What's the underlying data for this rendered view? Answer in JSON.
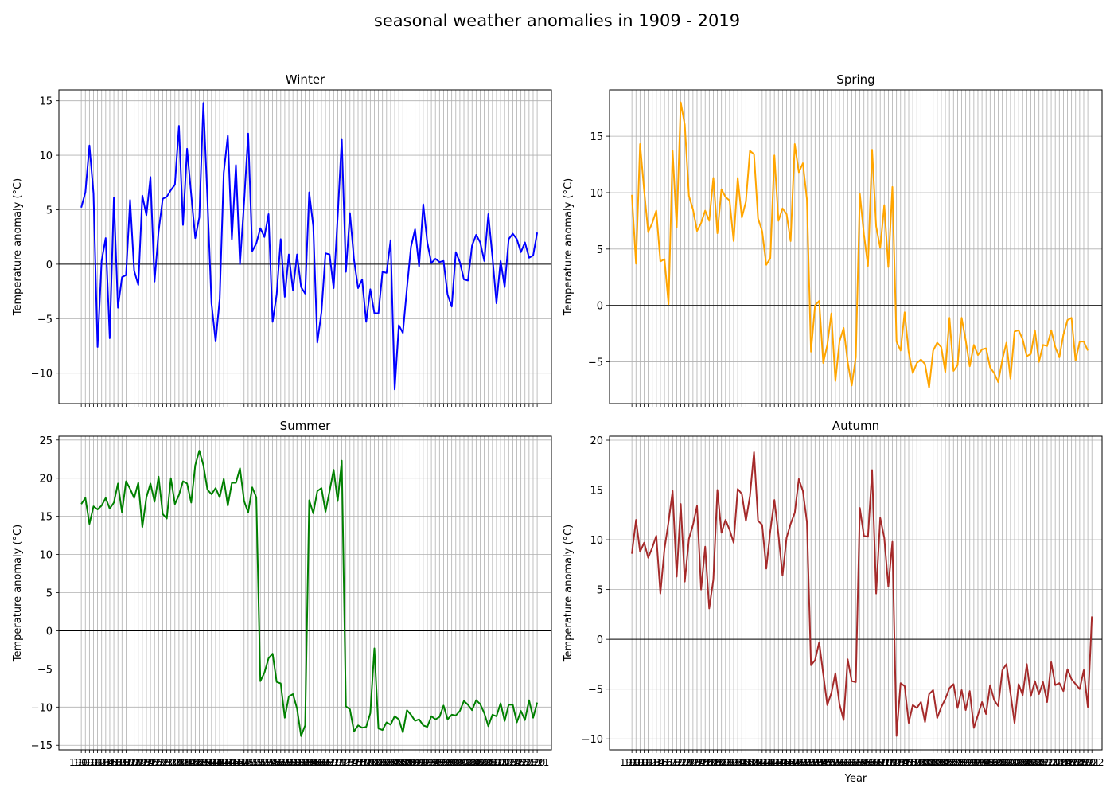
{
  "figure": {
    "title": "seasonal weather anomalies in 1909 - 2019"
  },
  "chart_data": [
    {
      "type": "line",
      "title": "Winter",
      "xlabel": "",
      "ylabel": "Temperature anomaly (°C)",
      "color": "#0000ff",
      "ylim": [
        -12.8,
        16.0
      ],
      "yticks": [
        -10,
        -5,
        0,
        5,
        10,
        15
      ],
      "x_start": 1909,
      "x_end": 2019,
      "grid": true,
      "zero_line": true,
      "values": [
        5.2,
        6.6,
        10.9,
        6.5,
        -7.6,
        0.3,
        2.4,
        -6.8,
        6.1,
        -4.0,
        -1.2,
        -1.0,
        5.9,
        -0.6,
        -1.9,
        6.3,
        4.5,
        8.0,
        -1.6,
        3.0,
        6.0,
        6.2,
        6.8,
        7.3,
        12.7,
        3.6,
        10.6,
        6.4,
        2.4,
        4.3,
        14.8,
        6.0,
        -3.6,
        -7.1,
        -3.2,
        8.4,
        11.8,
        2.3,
        9.1,
        0.0,
        5.7,
        12.0,
        1.2,
        1.9,
        3.3,
        2.5,
        4.6,
        -5.3,
        -2.8,
        2.3,
        -3.0,
        0.9,
        -2.4,
        0.9,
        -2.1,
        -2.7,
        6.6,
        3.5,
        -7.2,
        -4.4,
        1.0,
        0.9,
        -2.2,
        4.4,
        11.5,
        -0.7,
        4.7,
        0.4,
        -2.2,
        -1.4,
        -5.3,
        -2.3,
        -4.5,
        -4.5,
        -0.7,
        -0.8,
        2.2,
        -11.5,
        -5.6,
        -6.3,
        -2.2,
        1.6,
        3.2,
        -0.2,
        5.5,
        2.0,
        0.1,
        0.5,
        0.2,
        0.3,
        -2.8,
        -3.9,
        1.1,
        0.2,
        -1.4,
        -1.5,
        1.7,
        2.7,
        2.0,
        0.3,
        4.6,
        0.7,
        -3.6,
        0.3,
        -2.1,
        2.3,
        2.8,
        2.3,
        1.1,
        2.0,
        0.6,
        0.8,
        2.9
      ]
    },
    {
      "type": "line",
      "title": "Spring",
      "xlabel": "",
      "ylabel": "Temperature anomaly (°C)",
      "color": "#ffa500",
      "ylim": [
        -8.7,
        19.1
      ],
      "yticks": [
        -5,
        0,
        5,
        10,
        15
      ],
      "x_start": 1909,
      "x_end": 2019,
      "grid": true,
      "zero_line": true,
      "values": [
        9.8,
        3.7,
        14.3,
        10.2,
        6.5,
        7.3,
        8.4,
        3.9,
        4.1,
        0.1,
        13.7,
        6.9,
        18.0,
        16.0,
        9.7,
        8.5,
        6.6,
        7.3,
        8.4,
        7.5,
        11.3,
        6.4,
        10.3,
        9.6,
        9.3,
        5.7,
        11.3,
        7.8,
        9.2,
        13.7,
        13.4,
        7.7,
        6.6,
        3.6,
        4.2,
        13.3,
        7.5,
        8.6,
        8.1,
        5.7,
        14.3,
        11.8,
        12.6,
        9.4,
        -4.1,
        0.0,
        0.4,
        -5.1,
        -3.5,
        -0.7,
        -6.7,
        -3.2,
        -2.0,
        -5.0,
        -7.1,
        -4.6,
        9.9,
        6.3,
        3.5,
        13.8,
        7.0,
        5.1,
        8.9,
        3.4,
        10.5,
        -3.2,
        -4.0,
        -0.6,
        -4.2,
        -6.0,
        -5.1,
        -4.8,
        -5.2,
        -7.3,
        -4.0,
        -3.3,
        -3.7,
        -5.9,
        -1.1,
        -5.8,
        -5.3,
        -1.1,
        -3.1,
        -5.4,
        -3.5,
        -4.4,
        -3.9,
        -3.8,
        -5.5,
        -6.0,
        -6.8,
        -4.8,
        -3.3,
        -6.5,
        -2.3,
        -2.2,
        -3.0,
        -4.5,
        -4.3,
        -2.2,
        -5.0,
        -3.5,
        -3.6,
        -2.2,
        -3.7,
        -4.6,
        -2.6,
        -1.3,
        -1.1,
        -4.9,
        -3.2,
        -3.2,
        -4.0
      ]
    },
    {
      "type": "line",
      "title": "Summer",
      "xlabel": "",
      "ylabel": "Temperature anomaly (°C)",
      "color": "#008000",
      "ylim": [
        -15.6,
        25.5
      ],
      "yticks": [
        -15,
        -10,
        -5,
        0,
        5,
        10,
        15,
        20,
        25
      ],
      "x_start": 1909,
      "x_end": 2019,
      "grid": true,
      "zero_line": true,
      "values": [
        16.6,
        17.4,
        14.0,
        16.3,
        15.9,
        16.4,
        17.4,
        16.0,
        16.8,
        19.3,
        15.5,
        19.6,
        18.6,
        17.4,
        19.4,
        13.6,
        17.5,
        19.3,
        16.9,
        20.2,
        15.3,
        14.7,
        20.0,
        16.6,
        17.8,
        19.6,
        19.3,
        16.8,
        21.7,
        23.6,
        21.7,
        18.5,
        17.9,
        18.7,
        17.5,
        19.9,
        16.4,
        19.4,
        19.4,
        21.3,
        17.0,
        15.5,
        18.8,
        17.5,
        -6.6,
        -5.5,
        -3.6,
        -3.0,
        -6.7,
        -6.9,
        -11.4,
        -8.6,
        -8.3,
        -10.2,
        -13.8,
        -12.4,
        17.1,
        15.4,
        18.3,
        18.7,
        15.6,
        18.3,
        21.1,
        17.0,
        22.3,
        -9.9,
        -10.3,
        -13.2,
        -12.4,
        -12.7,
        -12.6,
        -10.8,
        -2.3,
        -12.8,
        -13.0,
        -12.0,
        -12.3,
        -11.2,
        -11.6,
        -13.3,
        -10.4,
        -11.0,
        -11.8,
        -11.6,
        -12.4,
        -12.6,
        -11.2,
        -11.6,
        -11.3,
        -9.8,
        -11.6,
        -11.0,
        -11.1,
        -10.5,
        -9.2,
        -9.7,
        -10.4,
        -9.1,
        -9.6,
        -10.8,
        -12.5,
        -11.0,
        -11.2,
        -9.5,
        -11.8,
        -9.7,
        -9.7,
        -12.0,
        -10.5,
        -11.7,
        -9.1,
        -11.4,
        -9.4
      ]
    },
    {
      "type": "line",
      "title": "Autumn",
      "xlabel": "Year",
      "ylabel": "Temperature anomaly (°C)",
      "color": "#a52a2a",
      "ylim": [
        -11.1,
        20.4
      ],
      "yticks": [
        -10,
        -5,
        0,
        5,
        10,
        15,
        20
      ],
      "x_start": 1909,
      "x_end": 2019,
      "grid": true,
      "zero_line": true,
      "values": [
        8.6,
        12.0,
        8.8,
        9.7,
        8.2,
        9.2,
        10.4,
        4.6,
        9.1,
        11.8,
        14.9,
        6.3,
        13.6,
        5.8,
        10.1,
        11.5,
        13.4,
        5.0,
        9.3,
        3.1,
        6.0,
        15.0,
        10.7,
        12.0,
        11.0,
        9.7,
        15.1,
        14.6,
        11.9,
        14.4,
        18.8,
        11.9,
        11.5,
        7.1,
        10.9,
        14.0,
        10.5,
        6.4,
        10.2,
        11.6,
        12.7,
        16.1,
        14.9,
        11.8,
        -2.6,
        -2.1,
        -0.3,
        -3.5,
        -6.6,
        -5.4,
        -3.4,
        -6.5,
        -8.1,
        -2.0,
        -4.2,
        -4.3,
        13.2,
        10.4,
        10.3,
        17.0,
        4.6,
        12.2,
        10.2,
        5.3,
        9.8,
        -9.7,
        -4.4,
        -4.7,
        -8.4,
        -6.6,
        -6.9,
        -6.3,
        -8.3,
        -5.5,
        -5.1,
        -7.9,
        -6.8,
        -6.0,
        -4.9,
        -4.5,
        -6.9,
        -5.1,
        -7.1,
        -5.2,
        -8.9,
        -7.6,
        -6.3,
        -7.5,
        -4.6,
        -6.1,
        -6.7,
        -3.1,
        -2.5,
        -5.4,
        -8.4,
        -4.5,
        -5.6,
        -2.5,
        -5.7,
        -4.2,
        -5.5,
        -4.3,
        -6.3,
        -2.3,
        -4.6,
        -4.4,
        -5.2,
        -3.0,
        -4.0,
        -4.5,
        -5.0,
        -3.1,
        -6.8,
        2.3
      ]
    }
  ]
}
